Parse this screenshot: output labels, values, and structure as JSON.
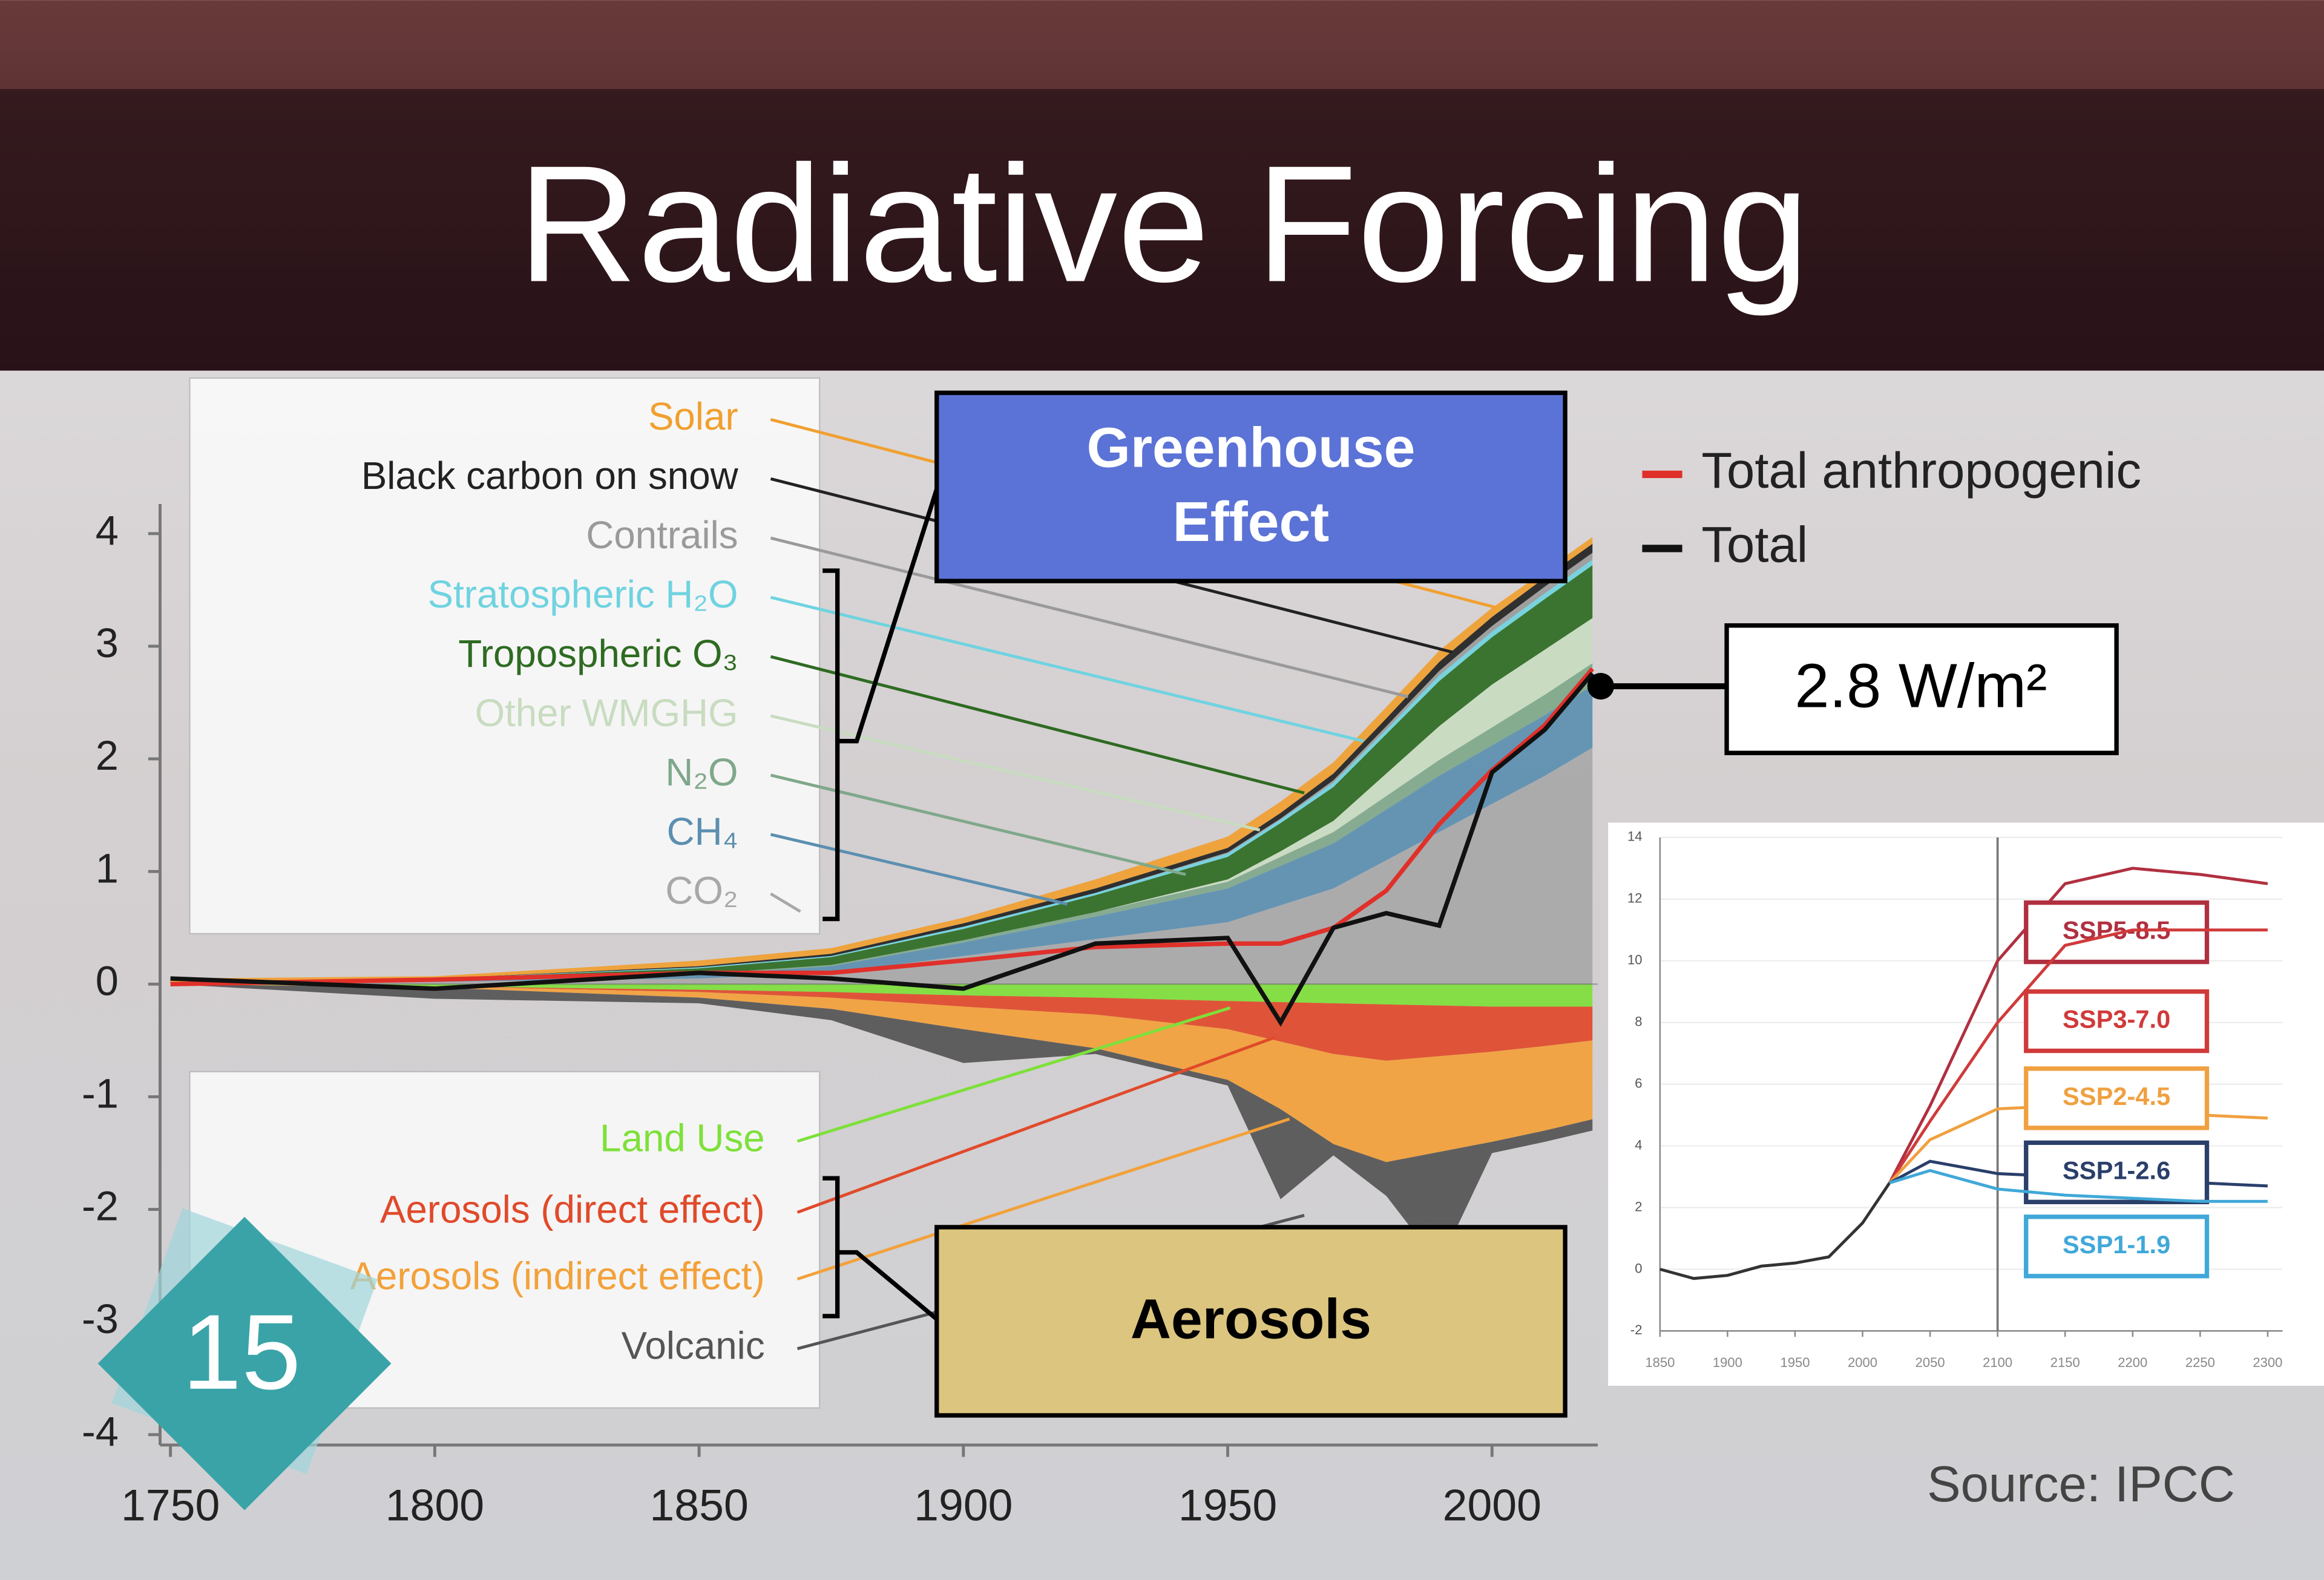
{
  "slide": {
    "title": "Radiative Forcing",
    "number": 15,
    "source": "Source: IPCC"
  },
  "annotations": {
    "greenhouse": [
      "Greenhouse",
      "Effect"
    ],
    "aerosols": "Aerosols",
    "current_forcing": "2.8 W/m²"
  },
  "chart_data": [
    {
      "type": "area",
      "x": [
        1750,
        1800,
        1850,
        1875,
        1900,
        1925,
        1950,
        1960,
        1970,
        1980,
        1990,
        2000,
        2010,
        2019
      ],
      "xlim": [
        1750,
        2020
      ],
      "xticks": [
        1750,
        1800,
        1850,
        1900,
        1950,
        2000
      ],
      "ylim": [
        -4,
        4
      ],
      "yticks": [
        -4,
        -3,
        -2,
        -1,
        0,
        1,
        2,
        3,
        4
      ],
      "series": [
        {
          "name": "Solar",
          "color": "#f0a030",
          "values": [
            0.05,
            0.02,
            0.05,
            0.05,
            0.05,
            0.08,
            0.1,
            0.1,
            0.1,
            0.1,
            0.1,
            0.08,
            0.06,
            0.06
          ]
        },
        {
          "name": "Black carbon on snow",
          "color": "#222222",
          "values": [
            0,
            0,
            0.01,
            0.02,
            0.03,
            0.04,
            0.04,
            0.05,
            0.06,
            0.07,
            0.08,
            0.08,
            0.08,
            0.08
          ]
        },
        {
          "name": "Contrails",
          "color": "#9a9a9a",
          "values": [
            0,
            0,
            0,
            0,
            0,
            0,
            0.01,
            0.01,
            0.02,
            0.03,
            0.04,
            0.05,
            0.06,
            0.06
          ]
        },
        {
          "name": "Stratospheric H₂O",
          "color": "#6fd3e0",
          "values": [
            0,
            0,
            0.01,
            0.01,
            0.02,
            0.02,
            0.03,
            0.03,
            0.04,
            0.04,
            0.05,
            0.05,
            0.05,
            0.05
          ]
        },
        {
          "name": "Tropospheric O₃",
          "color": "#2e6b22",
          "values": [
            0,
            0.02,
            0.05,
            0.07,
            0.1,
            0.15,
            0.2,
            0.25,
            0.3,
            0.35,
            0.4,
            0.42,
            0.45,
            0.47
          ]
        },
        {
          "name": "Other WMGHG",
          "color": "#c8dcc0",
          "values": [
            0,
            0,
            0,
            0,
            0,
            0,
            0.02,
            0.05,
            0.1,
            0.2,
            0.3,
            0.38,
            0.4,
            0.4
          ]
        },
        {
          "name": "N₂O",
          "color": "#7fa88a",
          "values": [
            0,
            0,
            0.01,
            0.01,
            0.02,
            0.04,
            0.06,
            0.08,
            0.1,
            0.12,
            0.14,
            0.16,
            0.18,
            0.2
          ]
        },
        {
          "name": "CH₄",
          "color": "#5b8fb0",
          "values": [
            0,
            0.01,
            0.03,
            0.06,
            0.12,
            0.2,
            0.3,
            0.35,
            0.4,
            0.45,
            0.5,
            0.52,
            0.54,
            0.55
          ]
        },
        {
          "name": "CO₂",
          "color": "#a8a8a8",
          "values": [
            0,
            0.02,
            0.05,
            0.1,
            0.25,
            0.4,
            0.55,
            0.7,
            0.85,
            1.1,
            1.35,
            1.6,
            1.85,
            2.1
          ]
        },
        {
          "name": "Land Use",
          "color": "#7ee03a",
          "values": [
            0,
            -0.02,
            -0.05,
            -0.07,
            -0.1,
            -0.12,
            -0.15,
            -0.16,
            -0.17,
            -0.18,
            -0.19,
            -0.2,
            -0.2,
            -0.2
          ]
        },
        {
          "name": "Aerosols (direct effect)",
          "color": "#e04a2a",
          "values": [
            0,
            0,
            -0.02,
            -0.05,
            -0.1,
            -0.15,
            -0.25,
            -0.35,
            -0.45,
            -0.5,
            -0.45,
            -0.4,
            -0.35,
            -0.3
          ]
        },
        {
          "name": "Aerosols (indirect effect)",
          "color": "#f2a13a",
          "values": [
            0,
            -0.01,
            -0.05,
            -0.1,
            -0.2,
            -0.3,
            -0.45,
            -0.6,
            -0.8,
            -0.9,
            -0.85,
            -0.8,
            -0.75,
            -0.7
          ]
        },
        {
          "name": "Volcanic",
          "color": "#555555",
          "values": [
            0,
            -0.1,
            -0.05,
            -0.1,
            -0.3,
            -0.05,
            -0.05,
            -0.8,
            -0.1,
            -0.3,
            -1.0,
            -0.1,
            -0.1,
            -0.1
          ]
        },
        {
          "name": "Total anthropogenic",
          "type": "line",
          "color": "#e0302a",
          "values": [
            0,
            0.04,
            0.1,
            0.1,
            0.21,
            0.33,
            0.36,
            0.36,
            0.5,
            0.83,
            1.42,
            1.9,
            2.3,
            2.8
          ]
        },
        {
          "name": "Total",
          "type": "line",
          "color": "#111111",
          "values": [
            0.05,
            -0.04,
            0.1,
            0.05,
            -0.04,
            0.36,
            0.41,
            -0.34,
            0.5,
            0.63,
            0.52,
            1.88,
            2.26,
            2.76
          ]
        }
      ]
    },
    {
      "type": "line",
      "xlim": [
        1850,
        2300
      ],
      "xticks": [
        1850,
        1900,
        1950,
        2000,
        2050,
        2100,
        2150,
        2200,
        2250,
        2300
      ],
      "ylim": [
        -2,
        14
      ],
      "yticks": [
        -2,
        0,
        2,
        4,
        6,
        8,
        10,
        12,
        14
      ],
      "grid": true,
      "reference_x": 2100,
      "series": [
        {
          "color": "#333333",
          "x": [
            1850,
            1875,
            1900,
            1925,
            1950,
            1975,
            2000,
            2020
          ],
          "values": [
            0,
            -0.3,
            -0.2,
            0.1,
            0.2,
            0.4,
            1.5,
            2.8
          ]
        },
        {
          "name": "SSP5-8.5",
          "color": "#b03040",
          "x": [
            2020,
            2050,
            2100,
            2150,
            2200,
            2250,
            2300
          ],
          "values": [
            2.8,
            5.3,
            10,
            12.5,
            13,
            12.8,
            12.5
          ]
        },
        {
          "name": "SSP3-7.0",
          "color": "#d03a3a",
          "x": [
            2020,
            2050,
            2100,
            2150,
            2200,
            2250,
            2300
          ],
          "values": [
            2.8,
            4.8,
            8,
            10.5,
            11,
            11,
            11
          ]
        },
        {
          "name": "SSP2-4.5",
          "color": "#f0a040",
          "x": [
            2020,
            2050,
            2100,
            2150,
            2200,
            2250,
            2300
          ],
          "values": [
            2.8,
            4.2,
            5.2,
            5.3,
            5.2,
            5,
            4.9
          ]
        },
        {
          "name": "SSP1-2.6",
          "color": "#2a3f6a",
          "x": [
            2020,
            2050,
            2100,
            2150,
            2200,
            2250,
            2300
          ],
          "values": [
            2.8,
            3.5,
            3.1,
            3,
            2.9,
            2.8,
            2.7
          ]
        },
        {
          "name": "SSP1-1.9",
          "color": "#40a8d8",
          "x": [
            2020,
            2050,
            2100,
            2150,
            2200,
            2250,
            2300
          ],
          "values": [
            2.8,
            3.2,
            2.6,
            2.4,
            2.3,
            2.2,
            2.2
          ]
        }
      ]
    }
  ]
}
